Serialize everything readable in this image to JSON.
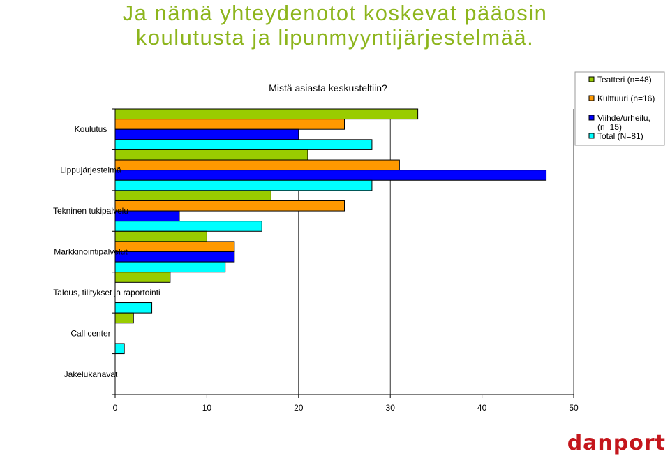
{
  "headline": {
    "line1": "Ja nämä yhteydenotot koskevat pääosin",
    "line2": "koulutusta ja lipunmyyntijärjestelmää."
  },
  "logo_text": "danport",
  "chart_data": {
    "type": "bar",
    "orientation": "horizontal",
    "title": "Mistä asiasta keskusteltiin?",
    "categories": [
      "Koulutus",
      "Lippujärjestelmä",
      "Tekninen tukipalvelu",
      "Markkinointipalvelut",
      "Talous, tilitykset ja raportointi",
      "Call center",
      "Jakelukanavat"
    ],
    "series": [
      {
        "name": "Teatteri (n=48)",
        "color": "#99cc00",
        "values": [
          33,
          21,
          17,
          10,
          6,
          2,
          0
        ]
      },
      {
        "name": "Kulttuuri (n=16)",
        "color": "#ff9900",
        "values": [
          25,
          31,
          25,
          13,
          0,
          0,
          0
        ]
      },
      {
        "name": "Viihde/urheilu, (n=15)",
        "color": "#0000ff",
        "values": [
          20,
          47,
          7,
          13,
          0,
          0,
          0
        ]
      },
      {
        "name": "Total (N=81)",
        "color": "#00ffff",
        "values": [
          28,
          28,
          16,
          12,
          4,
          1,
          0
        ]
      }
    ],
    "xlim": [
      0,
      50
    ],
    "xticks": [
      0,
      10,
      20,
      30,
      40,
      50
    ],
    "grid": true,
    "legend_position": "top-right"
  }
}
